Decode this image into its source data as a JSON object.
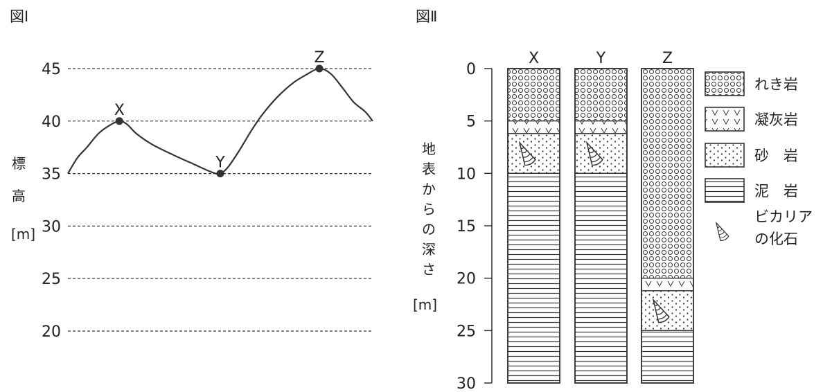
{
  "figure1": {
    "title": "図Ⅰ",
    "ylabel_chars": [
      "標",
      "高"
    ],
    "yunit": "[m]",
    "chart_data": {
      "type": "line",
      "ylim": [
        20,
        45
      ],
      "yticks": [
        45,
        40,
        35,
        30,
        25,
        20
      ],
      "grid": "dashed horizontal",
      "profile": [
        [
          0,
          35
        ],
        [
          5,
          36.5
        ],
        [
          10,
          37.5
        ],
        [
          16,
          38.8
        ],
        [
          22,
          39.6
        ],
        [
          27,
          40
        ],
        [
          31,
          39.7
        ],
        [
          36,
          38.8
        ],
        [
          44,
          37.8
        ],
        [
          55,
          36.8
        ],
        [
          66,
          35.9
        ],
        [
          76,
          35.1
        ],
        [
          80,
          35
        ],
        [
          84,
          35.6
        ],
        [
          90,
          37.2
        ],
        [
          96,
          39.0
        ],
        [
          102,
          40.6
        ],
        [
          110,
          42.3
        ],
        [
          118,
          43.6
        ],
        [
          125,
          44.4
        ],
        [
          132,
          45
        ],
        [
          138,
          44.5
        ],
        [
          144,
          43.2
        ],
        [
          150,
          41.8
        ],
        [
          156,
          40.9
        ],
        [
          160,
          40
        ]
      ],
      "points": [
        {
          "label": "X",
          "x": 27,
          "y": 40
        },
        {
          "label": "Y",
          "x": 80,
          "y": 35
        },
        {
          "label": "Z",
          "x": 132,
          "y": 45
        }
      ]
    }
  },
  "figure2": {
    "title": "図Ⅱ",
    "ylabel_chars": [
      "地",
      "表",
      "か",
      "ら",
      "の",
      "深",
      "さ"
    ],
    "yunit": "[m]",
    "depth_ticks": [
      0,
      5,
      10,
      15,
      20,
      25,
      30
    ],
    "columns": [
      {
        "name": "X",
        "layers": [
          {
            "type": "gravel",
            "from": 0,
            "to": 5
          },
          {
            "type": "tuff",
            "from": 5,
            "to": 6.2
          },
          {
            "type": "sand",
            "from": 6.2,
            "to": 10,
            "fossil": true
          },
          {
            "type": "mud",
            "from": 10,
            "to": 30
          }
        ]
      },
      {
        "name": "Y",
        "layers": [
          {
            "type": "gravel",
            "from": 0,
            "to": 5
          },
          {
            "type": "tuff",
            "from": 5,
            "to": 6.2
          },
          {
            "type": "sand",
            "from": 6.2,
            "to": 10,
            "fossil": true
          },
          {
            "type": "mud",
            "from": 10,
            "to": 30
          }
        ]
      },
      {
        "name": "Z",
        "layers": [
          {
            "type": "gravel",
            "from": 0,
            "to": 20
          },
          {
            "type": "tuff",
            "from": 20,
            "to": 21.2
          },
          {
            "type": "sand",
            "from": 21.2,
            "to": 25,
            "fossil": true
          },
          {
            "type": "mud",
            "from": 25,
            "to": 30
          }
        ]
      }
    ],
    "legend": [
      {
        "type": "gravel",
        "lines": [
          "れき岩"
        ]
      },
      {
        "type": "tuff",
        "lines": [
          "凝灰岩"
        ]
      },
      {
        "type": "sand",
        "lines": [
          "砂　岩"
        ]
      },
      {
        "type": "mud",
        "lines": [
          "泥　岩"
        ]
      },
      {
        "type": "fossil",
        "lines": [
          "ビカリア",
          "の化石"
        ]
      }
    ]
  }
}
